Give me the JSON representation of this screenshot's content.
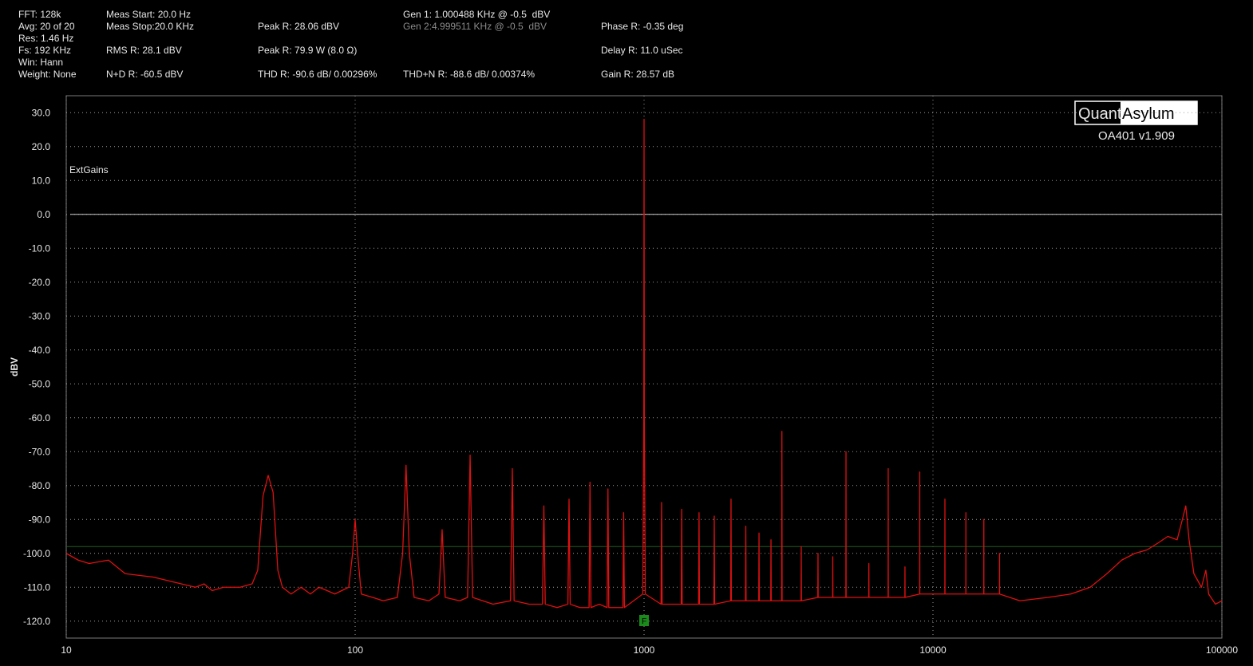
{
  "readouts": [
    "FFT: 128k",
    "Avg: 20 of 20",
    "Res: 1.46 Hz",
    "Fs: 192 KHz",
    "Win: Hann",
    "Weight: None",
    "Meas Start: 20.0 Hz",
    "Meas Stop:20.0 KHz",
    "RMS R: 28.1 dBV",
    "N+D R: -60.5 dBV",
    "Peak R: 28.06 dBV",
    "Peak R: 79.9 W (8.0 Ω)",
    "THD R: -90.6 dB/ 0.00296%",
    "Gen 1: 1.000488 KHz @ -0.5  dBV",
    "Gen 2:4.999511 KHz @ -0.5  dBV",
    "THD+N R: -88.6 dB/ 0.00374%",
    "Phase R: -0.35 deg",
    "Delay R: 11.0 uSec",
    "Gain R: 28.57 dB"
  ],
  "logo": {
    "left": "Quant",
    "right": "Asylum",
    "version": "OA401 v1.909"
  },
  "chart_data": {
    "type": "line",
    "ylabel": "dBV",
    "annotation": "ExtGains",
    "log_x": true,
    "grid": true,
    "xlim": [
      10,
      100000
    ],
    "xticks": [
      10,
      100,
      1000,
      10000,
      100000
    ],
    "ylim": [
      -125,
      35
    ],
    "yticks": [
      {
        "value": 30,
        "label": "30.0"
      },
      {
        "value": 20,
        "label": "20.0"
      },
      {
        "value": 10,
        "label": "10.0"
      },
      {
        "value": 0,
        "label": "0.0"
      },
      {
        "value": -10,
        "label": "-10.0"
      },
      {
        "value": -20,
        "label": "-20.0"
      },
      {
        "value": -30,
        "label": "-30.0"
      },
      {
        "value": -40,
        "label": "-40.0"
      },
      {
        "value": -50,
        "label": "-50.0"
      },
      {
        "value": -60,
        "label": "-60.0"
      },
      {
        "value": -70,
        "label": "-70.0"
      },
      {
        "value": -80,
        "label": "-80.0"
      },
      {
        "value": -90,
        "label": "-90.0"
      },
      {
        "value": -100,
        "label": "-100.0"
      },
      {
        "value": -110,
        "label": "-110.0"
      },
      {
        "value": -120,
        "label": "-120.0"
      }
    ],
    "hlines": [
      {
        "value": 0,
        "color": "#d0d0d0"
      },
      {
        "value": -98,
        "color": "#1f5a1f"
      }
    ],
    "marker": {
      "label": "F",
      "x": 1000,
      "color": "#1a8a1a"
    },
    "series": [
      {
        "color": "#e01010",
        "x": [
          10,
          11,
          12,
          14,
          16,
          20,
          25,
          28,
          30,
          32,
          35,
          40,
          44,
          46,
          48,
          50,
          52,
          54,
          56,
          60,
          65,
          70,
          75,
          80,
          85,
          95,
          98,
          100,
          102,
          105,
          115,
          125,
          140,
          146,
          150,
          154,
          160,
          180,
          195,
          200,
          205,
          230,
          245,
          250,
          255,
          300,
          345,
          350,
          355,
          400,
          445,
          450,
          455,
          500,
          545,
          550,
          555,
          600,
          645,
          650,
          655,
          700,
          745,
          750,
          755,
          800,
          845,
          850,
          855,
          990,
          998,
          1000,
          1002,
          1010,
          1145,
          1150,
          1155,
          1345,
          1350,
          1355,
          1545,
          1550,
          1555,
          1745,
          1750,
          1755,
          1995,
          2000,
          2005,
          2245,
          2250,
          2255,
          2495,
          2500,
          2505,
          2745,
          2750,
          2755,
          2995,
          3000,
          3005,
          3495,
          3500,
          3505,
          3995,
          4000,
          4005,
          4495,
          4500,
          4505,
          4995,
          5000,
          5005,
          5995,
          6000,
          6005,
          6995,
          7000,
          7005,
          7995,
          8000,
          8005,
          8995,
          9000,
          9005,
          10995,
          11000,
          11005,
          12995,
          13000,
          13005,
          14995,
          15000,
          15005,
          16995,
          17000,
          17005,
          20000,
          25000,
          30000,
          35000,
          40000,
          45000,
          50000,
          55000,
          60000,
          65000,
          70000,
          73000,
          75000,
          77000,
          80000,
          85000,
          88000,
          90000,
          95000,
          100000
        ],
        "values": [
          -100,
          -102,
          -103,
          -102,
          -106,
          -107,
          -109,
          -110,
          -109,
          -111,
          -110,
          -110,
          -109,
          -105,
          -83,
          -77,
          -82,
          -105,
          -110,
          -112,
          -110,
          -112,
          -110,
          -111,
          -112,
          -110,
          -100,
          -90,
          -100,
          -112,
          -113,
          -114,
          -113,
          -100,
          -74,
          -100,
          -113,
          -114,
          -112,
          -93,
          -113,
          -114,
          -113,
          -71,
          -113,
          -115,
          -114,
          -75,
          -114,
          -115,
          -115,
          -86,
          -115,
          -116,
          -115,
          -84,
          -115,
          -116,
          -116,
          -79,
          -116,
          -115,
          -116,
          -81,
          -116,
          -116,
          -116,
          -88,
          -116,
          -112,
          -60,
          28.06,
          -60,
          -112,
          -115,
          -85,
          -115,
          -115,
          -87,
          -115,
          -115,
          -88,
          -115,
          -115,
          -89,
          -115,
          -114,
          -84,
          -114,
          -114,
          -92,
          -114,
          -114,
          -94,
          -114,
          -114,
          -96,
          -114,
          -114,
          -64,
          -114,
          -114,
          -98,
          -114,
          -113,
          -100,
          -113,
          -113,
          -101,
          -113,
          -113,
          -70,
          -113,
          -113,
          -103,
          -113,
          -113,
          -75,
          -113,
          -113,
          -104,
          -113,
          -112,
          -76,
          -112,
          -112,
          -84,
          -112,
          -112,
          -88,
          -112,
          -112,
          -90,
          -112,
          -112,
          -100,
          -112,
          -114,
          -113,
          -112,
          -110,
          -106,
          -102,
          -100,
          -99,
          -97,
          -95,
          -96,
          -90,
          -86,
          -96,
          -106,
          -110,
          -105,
          -112,
          -115,
          -114
        ]
      }
    ]
  }
}
